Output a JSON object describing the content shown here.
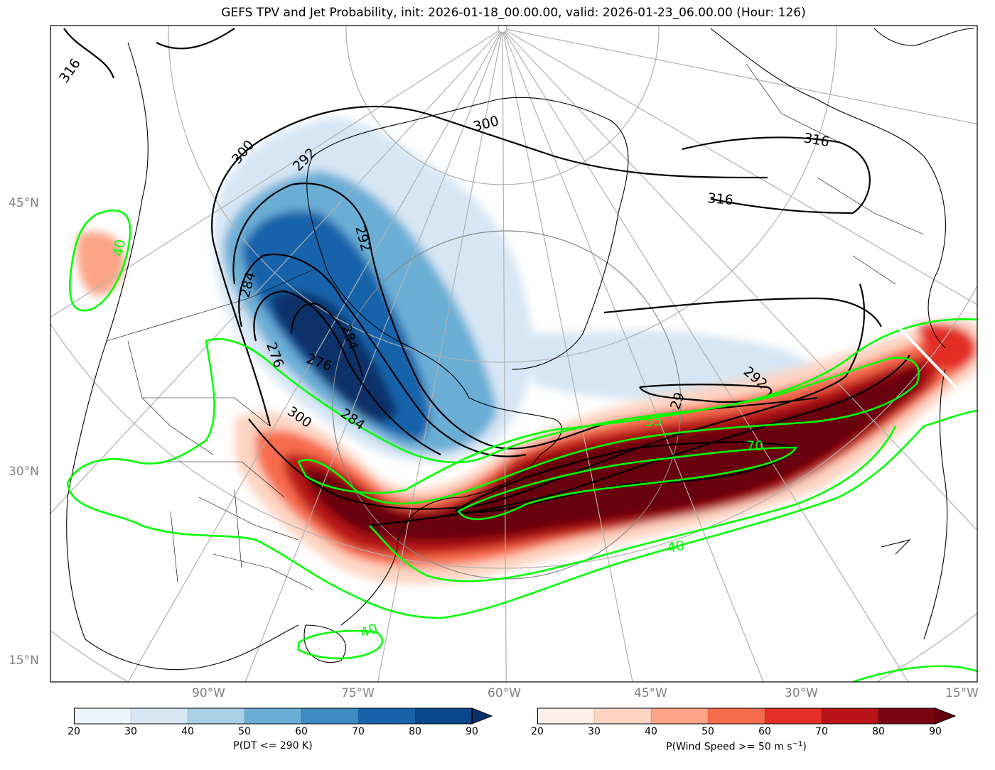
{
  "title": "GEFS TPV and Jet Probability, init: 2026-01-18_00.00.00, valid: 2026-01-23_06.00.00 (Hour: 126)",
  "lat_labels": [
    "45°N",
    "30°N",
    "15°N"
  ],
  "lon_labels": [
    "90°W",
    "75°W",
    "60°W",
    "45°W",
    "30°W",
    "15°W"
  ],
  "colorbar_left": {
    "label": "P(DT <= 290 K)",
    "ticks": [
      "20",
      "30",
      "40",
      "50",
      "60",
      "70",
      "80",
      "90"
    ],
    "colors": [
      "#eef5fc",
      "#d6e6f4",
      "#abd0e6",
      "#6aaed6",
      "#3d8dc4",
      "#1764ab",
      "#08468b"
    ],
    "extend_color": "#08306b"
  },
  "colorbar_right": {
    "label": "P(Wind Speed >= 50 m s",
    "label_sup": "−1",
    "label_end": ")",
    "ticks": [
      "20",
      "30",
      "40",
      "50",
      "60",
      "70",
      "80",
      "90"
    ],
    "colors": [
      "#fff0eb",
      "#fdd4c2",
      "#fca486",
      "#f86c4e",
      "#e32f27",
      "#b71319",
      "#7a0510"
    ],
    "extend_color": "#67000d"
  },
  "contours_black": [
    "316",
    "316",
    "316",
    "300",
    "300",
    "300",
    "292",
    "292",
    "292",
    "284",
    "284",
    "284",
    "276",
    "276",
    "29"
  ],
  "contours_green": [
    "40",
    "55",
    "70",
    "40",
    "40",
    "40"
  ],
  "colors": {
    "green_contour": "#00ff00",
    "black_contour": "#000000",
    "graticule": "#b0b0b0"
  }
}
